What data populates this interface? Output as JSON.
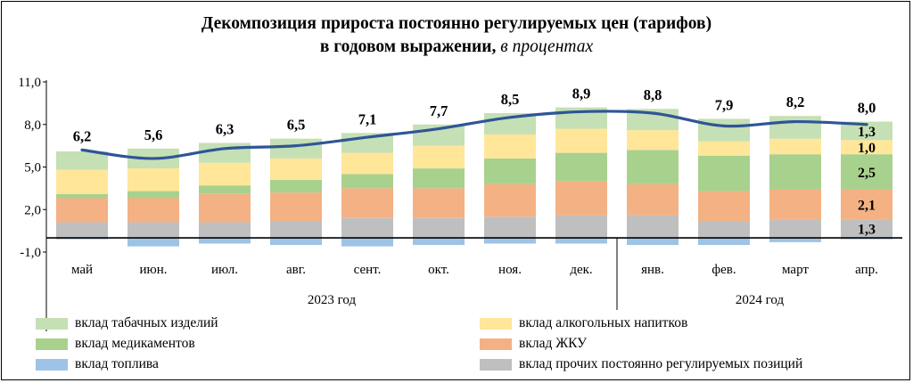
{
  "chart_data": {
    "type": "bar",
    "title": "Декомпозиция прироста постоянно регулируемых цен (тарифов)",
    "title_line2": "в годовом выражении,",
    "title_units": "в процентах",
    "categories": [
      "май",
      "июн.",
      "июл.",
      "авг.",
      "сент.",
      "окт.",
      "ноя.",
      "дек.",
      "янв.",
      "фев.",
      "март",
      "апр."
    ],
    "year_groups": [
      {
        "label": "2023 год",
        "from": 0,
        "to": 7
      },
      {
        "label": "2024 год",
        "from": 8,
        "to": 11
      }
    ],
    "ylim": [
      -1.0,
      11.0
    ],
    "yticks": [
      -1.0,
      2.0,
      5.0,
      8.0,
      11.0
    ],
    "ytick_labels": [
      "-1,0",
      "2,0",
      "5,0",
      "8,0",
      "11,0"
    ],
    "stacked": true,
    "series": [
      {
        "name": "вклад прочих постоянно регулируемых  позиций",
        "color": "#bfbfbf",
        "values": [
          1.1,
          1.1,
          1.1,
          1.2,
          1.4,
          1.4,
          1.5,
          1.6,
          1.6,
          1.2,
          1.3,
          1.3
        ]
      },
      {
        "name": "вклад ЖКУ",
        "color": "#f4b183",
        "values": [
          1.7,
          1.7,
          2.0,
          2.0,
          2.1,
          2.1,
          2.3,
          2.4,
          2.2,
          2.1,
          2.1,
          2.1
        ]
      },
      {
        "name": "вклад медикаментов",
        "color": "#a9d18e",
        "values": [
          0.3,
          0.5,
          0.6,
          0.9,
          1.0,
          1.4,
          1.8,
          2.0,
          2.4,
          2.5,
          2.5,
          2.5
        ]
      },
      {
        "name": "вклад алкогольных напитков",
        "color": "#ffe699",
        "values": [
          1.7,
          1.6,
          1.6,
          1.5,
          1.5,
          1.6,
          1.7,
          1.7,
          1.4,
          1.0,
          1.1,
          1.0
        ]
      },
      {
        "name": "вклад табачных изделий",
        "color": "#c5e0b4",
        "values": [
          1.3,
          1.4,
          1.4,
          1.4,
          1.4,
          1.5,
          1.5,
          1.5,
          1.5,
          1.6,
          1.6,
          1.3
        ]
      },
      {
        "name": "вклад топлива",
        "color": "#9dc3e6",
        "values": [
          -0.1,
          -0.6,
          -0.4,
          -0.5,
          -0.6,
          -0.5,
          -0.4,
          -0.4,
          -0.5,
          -0.5,
          -0.3,
          -0.1
        ]
      }
    ],
    "total_line": {
      "color": "#2f5597",
      "values": [
        6.2,
        5.6,
        6.3,
        6.5,
        7.1,
        7.7,
        8.5,
        8.9,
        8.8,
        7.9,
        8.2,
        8.0
      ],
      "labels": [
        "6,2",
        "5,6",
        "6,3",
        "6,5",
        "7,1",
        "7,7",
        "8,5",
        "8,9",
        "8,8",
        "7,9",
        "8,2",
        "8,0"
      ]
    },
    "bar_labels": [
      {
        "category_index": 11,
        "series_index": 4,
        "text": "1,3"
      },
      {
        "category_index": 11,
        "series_index": 3,
        "text": "1,0"
      },
      {
        "category_index": 11,
        "series_index": 2,
        "text": "2,5"
      },
      {
        "category_index": 11,
        "series_index": 1,
        "text": "2,1"
      },
      {
        "category_index": 11,
        "series_index": 0,
        "text": "1,3"
      }
    ],
    "legend": [
      {
        "label": "вклад табачных изделий",
        "color": "#c5e0b4"
      },
      {
        "label": "вклад алкогольных напитков",
        "color": "#ffe699"
      },
      {
        "label": "вклад медикаментов",
        "color": "#a9d18e"
      },
      {
        "label": "вклад ЖКУ",
        "color": "#f4b183"
      },
      {
        "label": "вклад топлива",
        "color": "#9dc3e6"
      },
      {
        "label": "вклад прочих постоянно регулируемых  позиций",
        "color": "#bfbfbf"
      }
    ],
    "grid": false,
    "legend_position": "bottom"
  }
}
